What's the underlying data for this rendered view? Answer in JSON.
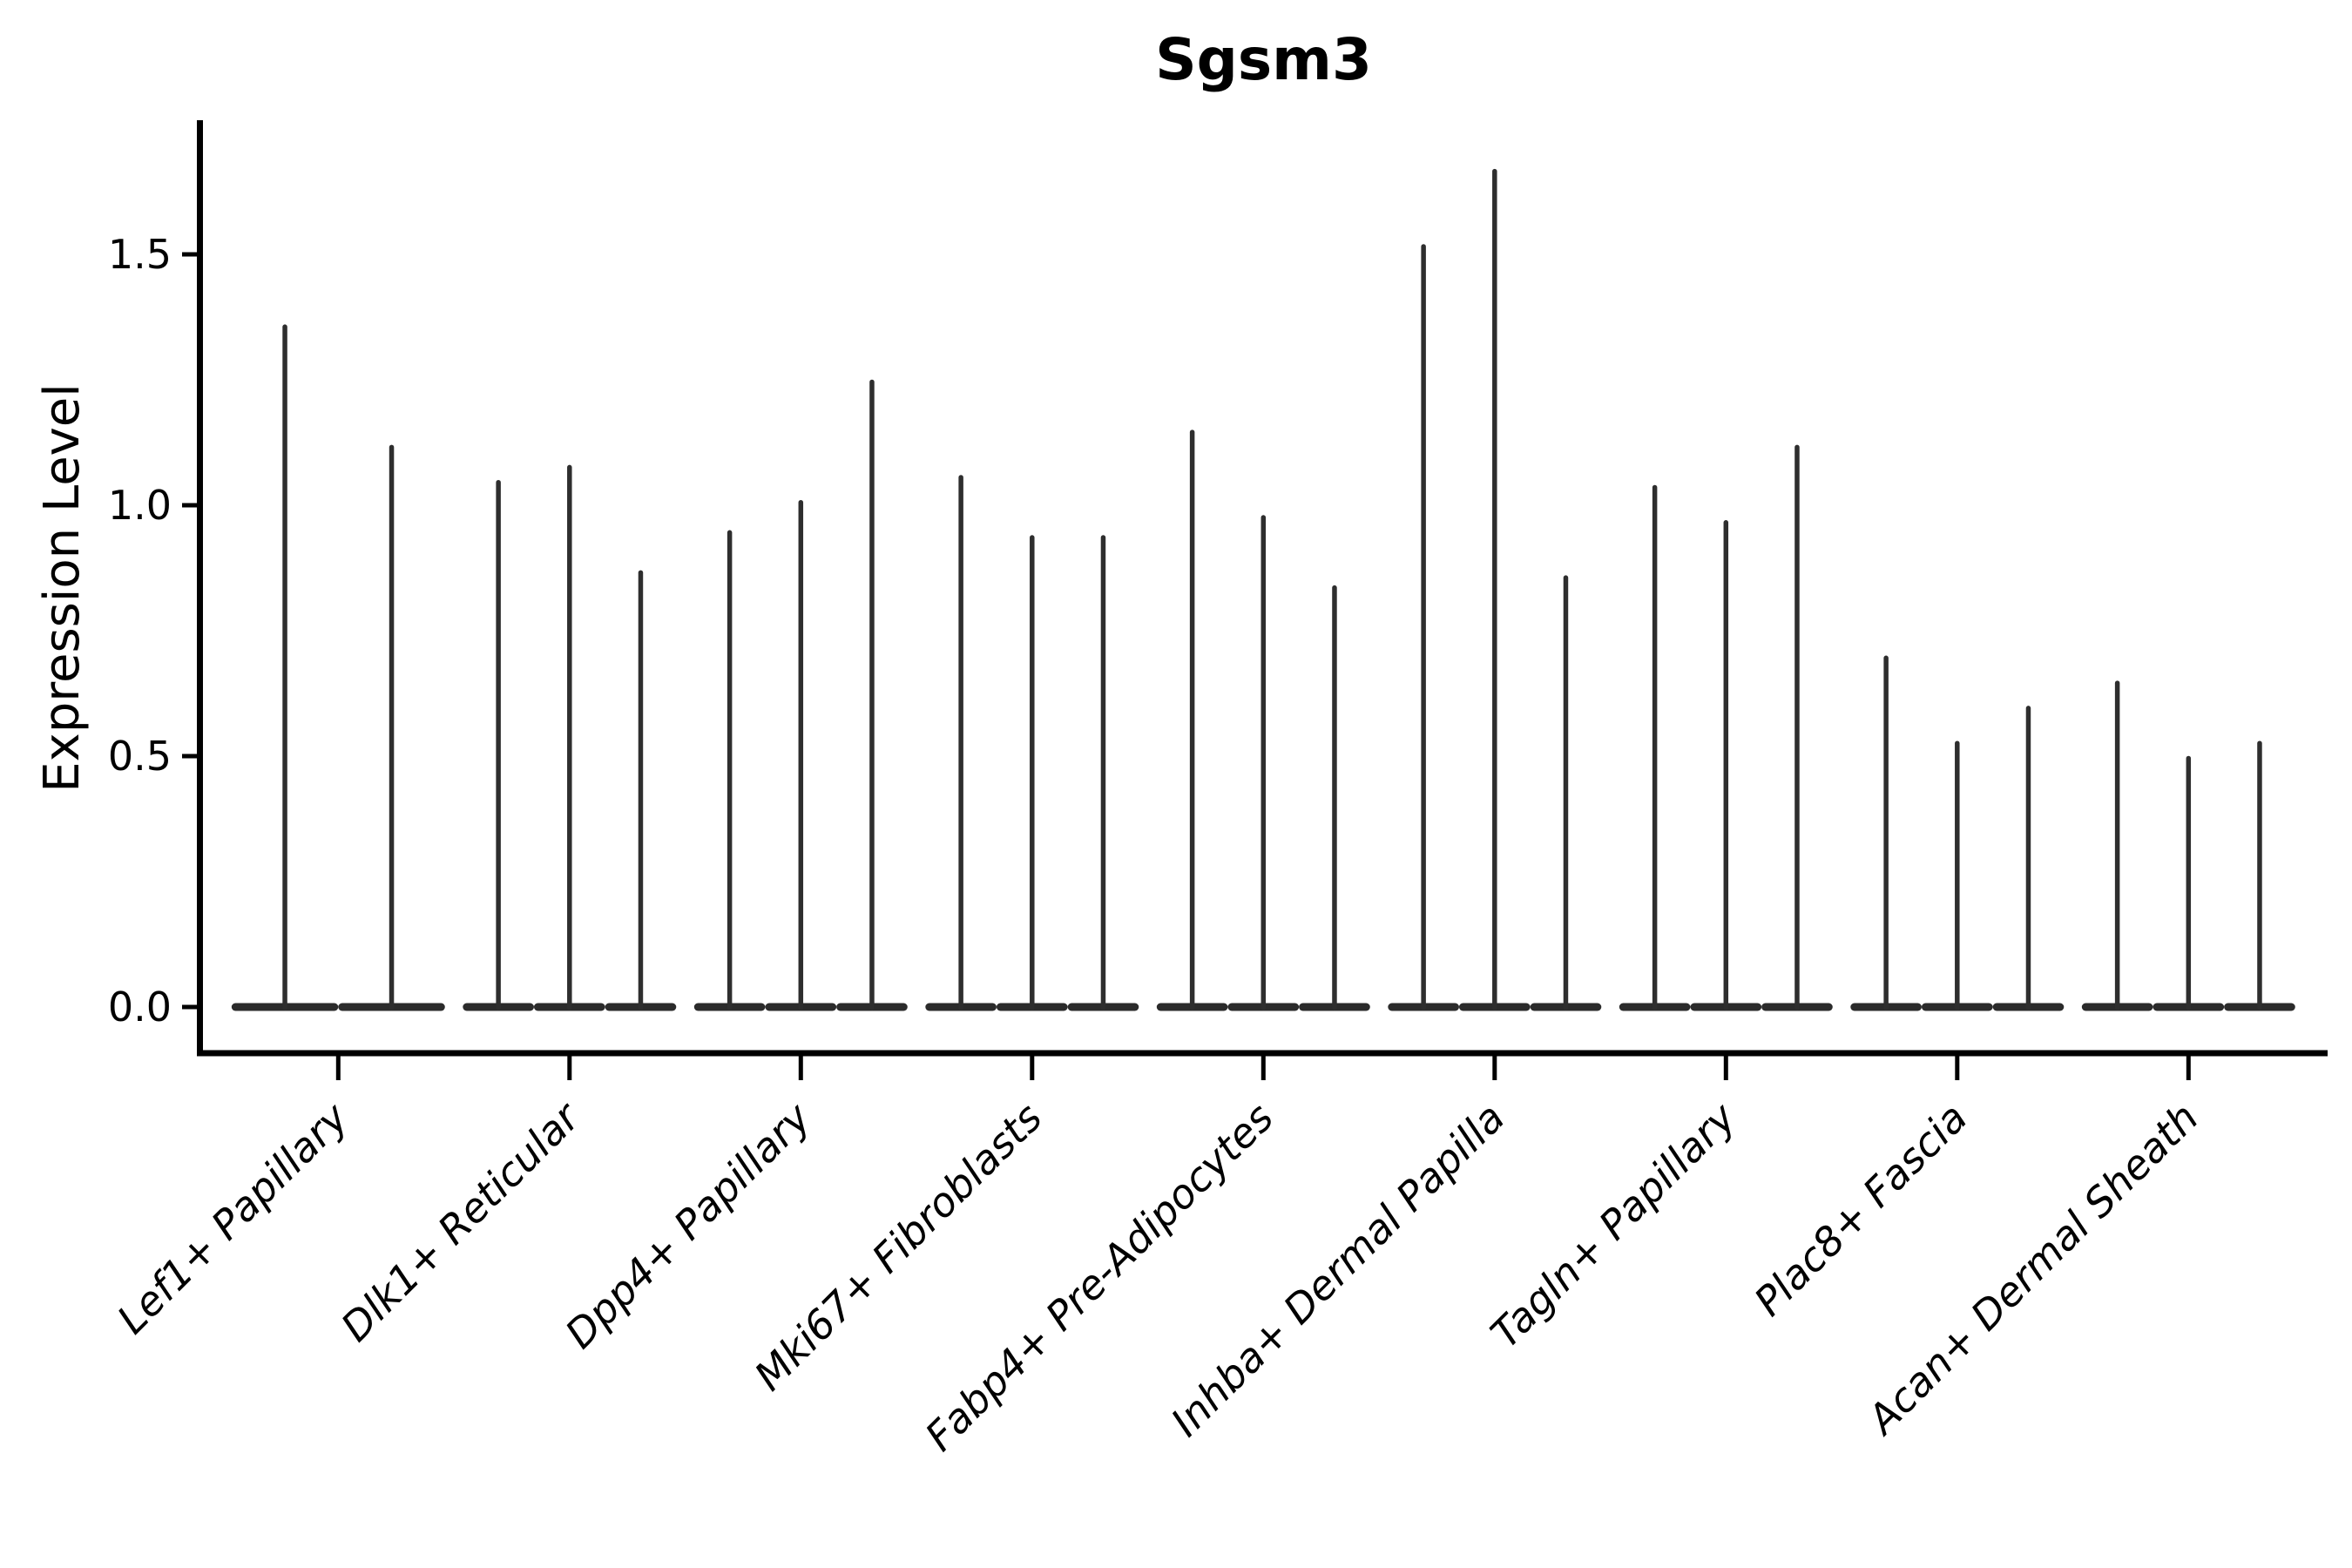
{
  "chart_data": {
    "type": "violin",
    "title": "Sgsm3",
    "ylabel": "Expression Level",
    "xlabel": "",
    "ylim": [
      -0.09,
      1.77
    ],
    "yticks": [
      0.0,
      0.5,
      1.0,
      1.5
    ],
    "ytick_labels": [
      "0.0",
      "0.5",
      "1.0",
      "1.5"
    ],
    "grid": false,
    "legend": false,
    "shape_note": "Each violin is a hairline spike: wide flat density bulge at 0 with a thin tail rising to its peak expression value; first category has 2 violins, all others 3",
    "categories": [
      "Lef1+ Papillary",
      "Dlk1+ Reticular",
      "Dpp4+ Papillary",
      "Mki67+ Fibroblasts",
      "Fabp4+ Pre-Adipocytes",
      "Inhba+ Dermal Papilla",
      "Tagln+ Papillary",
      "Plac8+ Fascia",
      "Acan+ Dermal Sheath"
    ],
    "series": [
      {
        "category": "Lef1+ Papillary",
        "violin_peaks": [
          1.36,
          1.12
        ]
      },
      {
        "category": "Dlk1+ Reticular",
        "violin_peaks": [
          1.05,
          1.08,
          0.87
        ]
      },
      {
        "category": "Dpp4+ Papillary",
        "violin_peaks": [
          0.95,
          1.01,
          1.25
        ]
      },
      {
        "category": "Mki67+ Fibroblasts",
        "violin_peaks": [
          1.06,
          0.94,
          0.94
        ]
      },
      {
        "category": "Fabp4+ Pre-Adipocytes",
        "violin_peaks": [
          1.15,
          0.98,
          0.84
        ]
      },
      {
        "category": "Inhba+ Dermal Papilla",
        "violin_peaks": [
          1.52,
          1.67,
          0.86
        ]
      },
      {
        "category": "Tagln+ Papillary",
        "violin_peaks": [
          1.04,
          0.97,
          1.12
        ]
      },
      {
        "category": "Plac8+ Fascia",
        "violin_peaks": [
          0.7,
          0.53,
          0.6
        ]
      },
      {
        "category": "Acan+ Dermal Sheath",
        "violin_peaks": [
          0.65,
          0.5,
          0.53
        ]
      }
    ],
    "style": {
      "violin_color": "#2e2e2e",
      "violin_base_color": "#2b2b2b",
      "axis_color": "#000000",
      "background": "#ffffff"
    }
  }
}
